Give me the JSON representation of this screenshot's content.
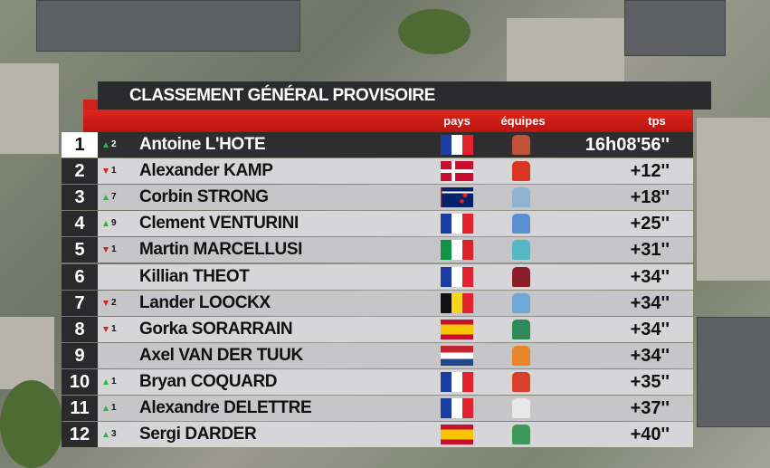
{
  "header": {
    "title": "CLASSEMENT GÉNÉRAL PROVISOIRE",
    "columns": [
      "pays",
      "équipes",
      "tps"
    ]
  },
  "rows": [
    {
      "rank": "1",
      "move": "2",
      "name": "Antoine L'HOTE",
      "time": "16h08'56''"
    },
    {
      "rank": "2",
      "move": "1",
      "name": "Alexander KAMP",
      "time": "+12''"
    },
    {
      "rank": "3",
      "move": "7",
      "name": "Corbin STRONG",
      "time": "+18''"
    },
    {
      "rank": "4",
      "move": "9",
      "name": "Clement VENTURINI",
      "time": "+25''"
    },
    {
      "rank": "5",
      "move": "1",
      "name": "Martin MARCELLUSI",
      "time": "+31''"
    },
    {
      "rank": "6",
      "name": "Killian THEOT",
      "time": "+34''"
    },
    {
      "rank": "7",
      "move": "2",
      "name": "Lander LOOCKX",
      "time": "+34''"
    },
    {
      "rank": "8",
      "move": "1",
      "name": "Gorka SORARRAIN",
      "time": "+34''"
    },
    {
      "rank": "9",
      "name": "Axel VAN DER TUUK",
      "time": "+34''"
    },
    {
      "rank": "10",
      "move": "1",
      "name": "Bryan COQUARD",
      "time": "+35''"
    },
    {
      "rank": "11",
      "move": "1",
      "name": "Alexandre DELETTRE",
      "time": "+37''"
    },
    {
      "rank": "12",
      "move": "3",
      "name": "Sergi DARDER",
      "time": "+40''"
    }
  ]
}
